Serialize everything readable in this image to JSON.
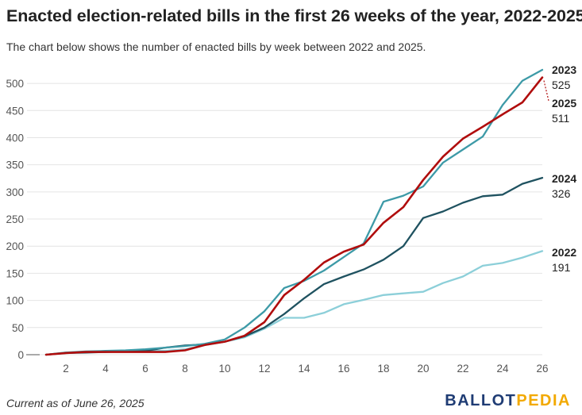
{
  "title": "Enacted election-related bills in the first 26 weeks of the year, 2022-2025",
  "subtitle": "The chart below shows the number of enacted bills by week between 2022 and 2025.",
  "footnote": "Current as of June 26, 2025",
  "logo": {
    "part1": "BALLOT",
    "part2": "PEDIA"
  },
  "chart_data": {
    "type": "line",
    "xlabel": "",
    "ylabel": "",
    "xlim": [
      1,
      26
    ],
    "ylim": [
      0,
      525
    ],
    "x_ticks": [
      2,
      4,
      6,
      8,
      10,
      12,
      14,
      16,
      18,
      20,
      22,
      24,
      26
    ],
    "y_ticks": [
      0,
      50,
      100,
      150,
      200,
      250,
      300,
      350,
      400,
      450,
      500
    ],
    "y_tick_labels": [
      "0",
      "50",
      "100",
      "150",
      "200",
      "250",
      "300",
      "350",
      "400",
      "450",
      "500"
    ],
    "grid": "horizontal",
    "legend": "end-of-line labels",
    "x": [
      1,
      2,
      3,
      4,
      5,
      6,
      7,
      8,
      9,
      10,
      11,
      12,
      13,
      14,
      15,
      16,
      17,
      18,
      19,
      20,
      21,
      22,
      23,
      24,
      25,
      26
    ],
    "series": [
      {
        "name": "2022",
        "end_value_label": "191",
        "color": "#8ccfd9",
        "values": [
          0,
          4,
          5,
          6,
          6,
          7,
          7,
          10,
          18,
          24,
          32,
          48,
          68,
          68,
          77,
          93,
          101,
          110,
          113,
          116,
          132,
          144,
          164,
          169,
          179,
          191
        ]
      },
      {
        "name": "2023",
        "end_value_label": "525",
        "color": "#3d9aa7",
        "values": [
          0,
          4,
          6,
          7,
          8,
          10,
          13,
          16,
          20,
          28,
          50,
          80,
          123,
          136,
          155,
          180,
          205,
          282,
          293,
          310,
          354,
          378,
          402,
          460,
          505,
          525
        ]
      },
      {
        "name": "2024",
        "end_value_label": "326",
        "color": "#1f5260",
        "values": [
          0,
          3,
          4,
          5,
          6,
          7,
          13,
          17,
          19,
          24,
          34,
          50,
          75,
          104,
          130,
          144,
          157,
          175,
          200,
          252,
          264,
          280,
          292,
          295,
          315,
          326
        ]
      },
      {
        "name": "2025",
        "end_value_label": "511",
        "color": "#b00d0d",
        "values": [
          0,
          3,
          5,
          5,
          5,
          5,
          5,
          8,
          18,
          24,
          35,
          60,
          110,
          138,
          170,
          190,
          203,
          243,
          272,
          322,
          365,
          398,
          420,
          443,
          465,
          511
        ]
      }
    ]
  }
}
